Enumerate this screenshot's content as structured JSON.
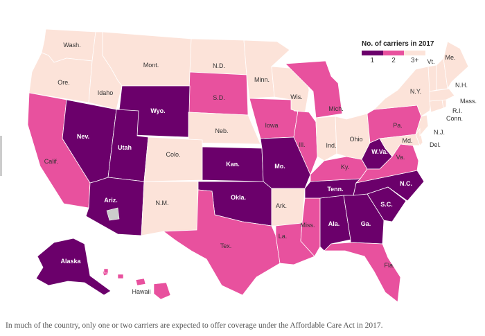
{
  "legend": {
    "title": "No. of carriers in 2017",
    "items": [
      {
        "label": "1",
        "color": "#6b006b"
      },
      {
        "label": "2",
        "color": "#e8519e"
      },
      {
        "label": "3+",
        "color": "#fce3d9"
      }
    ]
  },
  "colors": {
    "one_carrier": "#6b006b",
    "two_carriers": "#e8519e",
    "three_plus": "#fce3d9",
    "no_data": "#cccccc",
    "borders": "#ffffff"
  },
  "states": [
    {
      "abbr": "Wash.",
      "carriers": "3+"
    },
    {
      "abbr": "Ore.",
      "carriers": "3+"
    },
    {
      "abbr": "Idaho",
      "carriers": "3+"
    },
    {
      "abbr": "Mont.",
      "carriers": "3+"
    },
    {
      "abbr": "N.D.",
      "carriers": "3+"
    },
    {
      "abbr": "Minn.",
      "carriers": "3+"
    },
    {
      "abbr": "Wyo.",
      "carriers": "1"
    },
    {
      "abbr": "S.D.",
      "carriers": "2"
    },
    {
      "abbr": "Wis.",
      "carriers": "3+"
    },
    {
      "abbr": "Mich.",
      "carriers": "2"
    },
    {
      "abbr": "Nev.",
      "carriers": "1"
    },
    {
      "abbr": "Utah",
      "carriers": "1"
    },
    {
      "abbr": "Calif.",
      "carriers": "2"
    },
    {
      "abbr": "Colo.",
      "carriers": "3+"
    },
    {
      "abbr": "Neb.",
      "carriers": "3+"
    },
    {
      "abbr": "Iowa",
      "carriers": "2"
    },
    {
      "abbr": "Ill.",
      "carriers": "2"
    },
    {
      "abbr": "Ind.",
      "carriers": "3+"
    },
    {
      "abbr": "Ohio",
      "carriers": "3+"
    },
    {
      "abbr": "Pa.",
      "carriers": "2"
    },
    {
      "abbr": "N.Y.",
      "carriers": "3+"
    },
    {
      "abbr": "Kan.",
      "carriers": "1"
    },
    {
      "abbr": "Mo.",
      "carriers": "1"
    },
    {
      "abbr": "Ky.",
      "carriers": "2"
    },
    {
      "abbr": "W.Va.",
      "carriers": "1"
    },
    {
      "abbr": "Va.",
      "carriers": "2"
    },
    {
      "abbr": "Md.",
      "carriers": "3+"
    },
    {
      "abbr": "Del.",
      "carriers": "3+"
    },
    {
      "abbr": "N.J.",
      "carriers": "3+"
    },
    {
      "abbr": "Conn.",
      "carriers": "3+"
    },
    {
      "abbr": "R.I.",
      "carriers": "3+"
    },
    {
      "abbr": "Mass.",
      "carriers": "3+"
    },
    {
      "abbr": "N.H.",
      "carriers": "3+"
    },
    {
      "abbr": "Vt.",
      "carriers": "3+"
    },
    {
      "abbr": "Me.",
      "carriers": "3+"
    },
    {
      "abbr": "Ariz.",
      "carriers": "1"
    },
    {
      "abbr": "N.M.",
      "carriers": "3+"
    },
    {
      "abbr": "Okla.",
      "carriers": "1"
    },
    {
      "abbr": "Ark.",
      "carriers": "3+"
    },
    {
      "abbr": "Tenn.",
      "carriers": "1"
    },
    {
      "abbr": "N.C.",
      "carriers": "1"
    },
    {
      "abbr": "S.C.",
      "carriers": "1"
    },
    {
      "abbr": "Tex.",
      "carriers": "2"
    },
    {
      "abbr": "La.",
      "carriers": "2"
    },
    {
      "abbr": "Miss.",
      "carriers": "2"
    },
    {
      "abbr": "Ala.",
      "carriers": "1"
    },
    {
      "abbr": "Ga.",
      "carriers": "1"
    },
    {
      "abbr": "Fla.",
      "carriers": "2"
    },
    {
      "abbr": "Alaska",
      "carriers": "1"
    },
    {
      "abbr": "Hawaii",
      "carriers": "2"
    }
  ],
  "caption": "In much of the country, only one or two carriers are expected to offer coverage under the Affordable Care Act in 2017."
}
